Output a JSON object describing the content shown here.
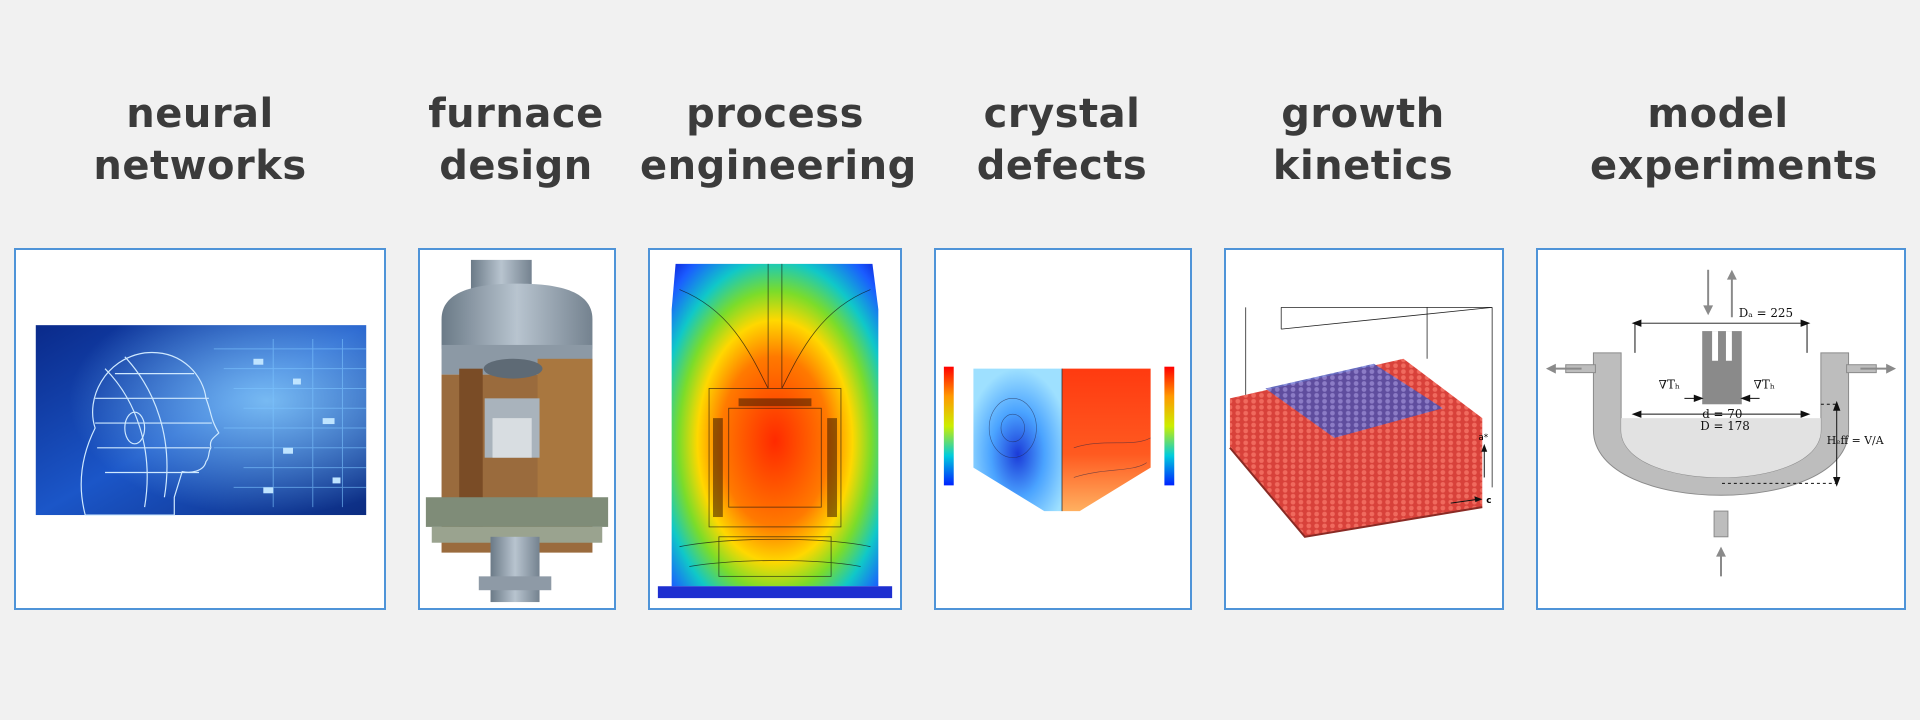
{
  "panels": [
    {
      "id": "neural",
      "line1": "neural",
      "line2": "networks"
    },
    {
      "id": "furnace",
      "line1": "furnace",
      "line2": "design"
    },
    {
      "id": "process",
      "line1": "process",
      "line2": "engineering"
    },
    {
      "id": "crystal",
      "line1": "crystal",
      "line2": "defects"
    },
    {
      "id": "growth",
      "line1": "growth",
      "line2": "kinetics"
    },
    {
      "id": "model",
      "line1": "model",
      "line2": "experiments"
    }
  ],
  "model_labels": {
    "da": "Dₐ = 225",
    "grad_left": "∇Tₕ",
    "grad_right": "∇Tₕ",
    "d": "d = 70",
    "D": "D = 178",
    "heff": "Hₑff = V/A"
  },
  "growth_labels": {
    "a": "a*",
    "c": "c"
  },
  "colors": {
    "border": "#4f94d8",
    "title": "#3b3b3b",
    "background": "#f1f1f1"
  }
}
